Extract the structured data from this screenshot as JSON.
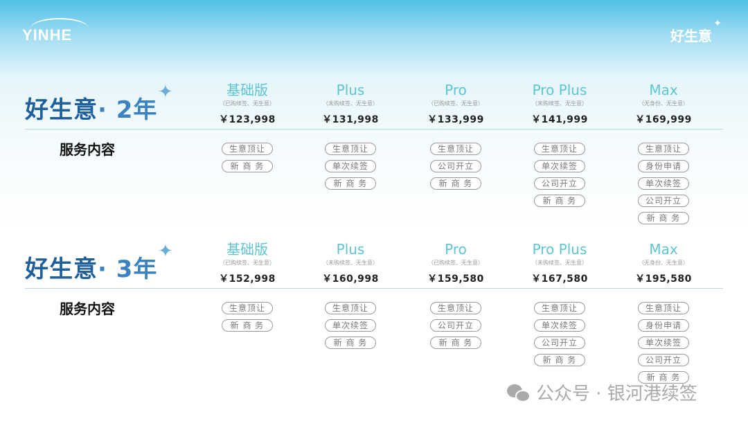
{
  "header": {
    "logo": "YINHE",
    "brand": "好生意"
  },
  "colors": {
    "accent": "#5ec4d0",
    "title": "#1f5f9a",
    "background_top": "#4fc0e6"
  },
  "sections": [
    {
      "title": "好生意",
      "years": "· 2年",
      "service_label": "服务内容",
      "plans": [
        {
          "name": "基础版",
          "sub": "（已购续签、无生意）",
          "price": "￥123,998",
          "tags": [
            "生意顶让",
            "新 商 务"
          ]
        },
        {
          "name": "Plus",
          "sub": "（未购续签、无生意）",
          "price": "￥131,998",
          "tags": [
            "生意顶让",
            "单次续签",
            "新 商 务"
          ]
        },
        {
          "name": "Pro",
          "sub": "（已购续签、无生意）",
          "price": "￥133,999",
          "tags": [
            "生意顶让",
            "公司开立",
            "新 商 务"
          ]
        },
        {
          "name": "Pro Plus",
          "sub": "（未购续签、无生意）",
          "price": "￥141,999",
          "tags": [
            "生意顶让",
            "单次续签",
            "公司开立",
            "新 商 务"
          ]
        },
        {
          "name": "Max",
          "sub": "（无身份、无生意）",
          "price": "￥169,999",
          "tags": [
            "生意顶让",
            "身份申请",
            "单次续签",
            "公司开立",
            "新 商 务"
          ]
        }
      ]
    },
    {
      "title": "好生意",
      "years": "· 3年",
      "service_label": "服务内容",
      "plans": [
        {
          "name": "基础版",
          "sub": "（已购续签、无生意）",
          "price": "￥152,998",
          "tags": [
            "生意顶让",
            "新 商 务"
          ]
        },
        {
          "name": "Plus",
          "sub": "（未购续签、无生意）",
          "price": "￥160,998",
          "tags": [
            "生意顶让",
            "单次续签",
            "新 商 务"
          ]
        },
        {
          "name": "Pro",
          "sub": "（已购续签、无生意）",
          "price": "￥159,580",
          "tags": [
            "生意顶让",
            "公司开立",
            "新 商 务"
          ]
        },
        {
          "name": "Pro Plus",
          "sub": "（未购续签、无生意）",
          "price": "￥167,580",
          "tags": [
            "生意顶让",
            "单次续签",
            "公司开立",
            "新 商 务"
          ]
        },
        {
          "name": "Max",
          "sub": "（无身份、无生意）",
          "price": "￥195,580",
          "tags": [
            "生意顶让",
            "身份申请",
            "单次续签",
            "公司开立",
            "新 商 务"
          ]
        }
      ]
    }
  ],
  "watermark": "公众号 · 银河港续签"
}
